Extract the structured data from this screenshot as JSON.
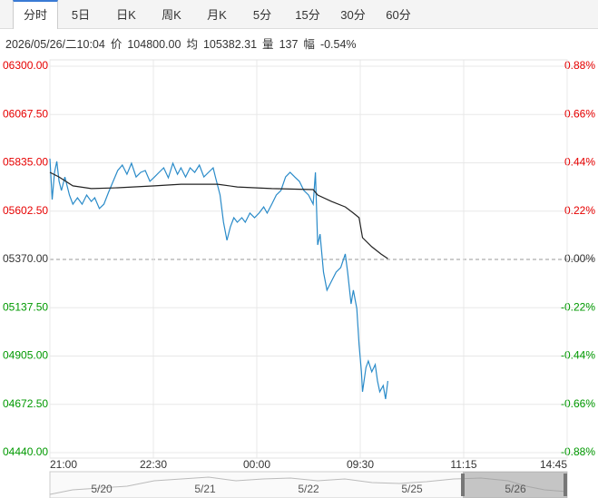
{
  "tabs": [
    "分时",
    "5日",
    "日K",
    "周K",
    "月K",
    "5分",
    "15分",
    "30分",
    "60分"
  ],
  "info": {
    "time": "2026/05/26/二10:04",
    "items": [
      {
        "label": "价",
        "value": "104800.00"
      },
      {
        "label": "均",
        "value": "105382.31"
      },
      {
        "label": "量",
        "value": "137"
      },
      {
        "label": "幅",
        "value": "-0.54%"
      }
    ]
  },
  "chart_data": {
    "type": "line",
    "xlim": [
      0,
      450
    ],
    "xticks": [
      {
        "value": 0,
        "label": "21:00"
      },
      {
        "value": 90,
        "label": "22:30"
      },
      {
        "value": 180,
        "label": "00:00"
      },
      {
        "value": 270,
        "label": "09:30"
      },
      {
        "value": 360,
        "label": "11:15"
      },
      {
        "value": 450,
        "label": "14:45"
      }
    ],
    "ylim": [
      4440,
      6300
    ],
    "yticks": [
      {
        "value": 6300,
        "label": "06300.00"
      },
      {
        "value": 6067.5,
        "label": "06067.50"
      },
      {
        "value": 5835,
        "label": "05835.00"
      },
      {
        "value": 5602.5,
        "label": "05602.50"
      },
      {
        "value": 5370,
        "label": "05370.00"
      },
      {
        "value": 5137.5,
        "label": "05137.50"
      },
      {
        "value": 4905,
        "label": "04905.00"
      },
      {
        "value": 4672.5,
        "label": "04672.50"
      },
      {
        "value": 4440,
        "label": "04440.00"
      }
    ],
    "y2lim": [
      -0.88,
      0.88
    ],
    "y2ticks": [
      {
        "value": 0.88,
        "label": "0.88%"
      },
      {
        "value": 0.66,
        "label": "0.66%"
      },
      {
        "value": 0.44,
        "label": "0.44%"
      },
      {
        "value": 0.22,
        "label": "0.22%"
      },
      {
        "value": 0,
        "label": "0.00%"
      },
      {
        "value": -0.22,
        "label": "-0.22%"
      },
      {
        "value": -0.44,
        "label": "-0.44%"
      },
      {
        "value": -0.66,
        "label": "-0.66%"
      },
      {
        "value": -0.88,
        "label": "-0.88%"
      }
    ],
    "grid": true,
    "up_color": "#e60000",
    "down_color": "#009900",
    "flat_color": "#333333",
    "series": [
      {
        "color": "#2a8bc9",
        "x": [
          0,
          2,
          4,
          6,
          8,
          10,
          13,
          17,
          20,
          24,
          28,
          32,
          36,
          39,
          43,
          47,
          51,
          55,
          59,
          63,
          67,
          71,
          75,
          79,
          83,
          87,
          91,
          95,
          99,
          103,
          107,
          111,
          114,
          118,
          122,
          126,
          130,
          134,
          138,
          142,
          144,
          148,
          151,
          154,
          157,
          160,
          163,
          167,
          170,
          174,
          178,
          182,
          186,
          189,
          193,
          197,
          201,
          205,
          209,
          213,
          217,
          221,
          225,
          229,
          231,
          233,
          235,
          238,
          241,
          245,
          249,
          253,
          257,
          259,
          262,
          264,
          267,
          269,
          271,
          272,
          275,
          277,
          280,
          283,
          285,
          287,
          290,
          292,
          294
        ],
        "values": [
          5855,
          5658,
          5789,
          5842,
          5746,
          5702,
          5767,
          5680,
          5636,
          5667,
          5636,
          5680,
          5649,
          5667,
          5615,
          5636,
          5693,
          5746,
          5798,
          5824,
          5780,
          5833,
          5767,
          5789,
          5798,
          5746,
          5767,
          5789,
          5811,
          5763,
          5833,
          5780,
          5811,
          5767,
          5811,
          5789,
          5824,
          5767,
          5789,
          5811,
          5767,
          5680,
          5549,
          5462,
          5527,
          5571,
          5549,
          5571,
          5549,
          5593,
          5571,
          5593,
          5623,
          5593,
          5636,
          5680,
          5702,
          5767,
          5789,
          5767,
          5746,
          5702,
          5680,
          5636,
          5789,
          5440,
          5492,
          5309,
          5222,
          5265,
          5309,
          5331,
          5396,
          5309,
          5156,
          5222,
          5134,
          4960,
          4829,
          4733,
          4850,
          4881,
          4829,
          4864,
          4785,
          4733,
          4763,
          4698,
          4785
        ]
      },
      {
        "color": "#222222",
        "x": [
          0,
          8,
          20,
          36,
          59,
          91,
          114,
          146,
          163,
          193,
          229,
          233,
          245,
          257,
          264,
          269,
          272,
          280,
          288,
          294
        ],
        "values": [
          5789,
          5767,
          5724,
          5711,
          5715,
          5724,
          5732,
          5732,
          5719,
          5711,
          5706,
          5680,
          5649,
          5623,
          5593,
          5571,
          5475,
          5431,
          5396,
          5374
        ]
      }
    ],
    "navigator_labels": [
      "5/20",
      "5/21",
      "5/22",
      "5/25",
      "5/26"
    ]
  }
}
